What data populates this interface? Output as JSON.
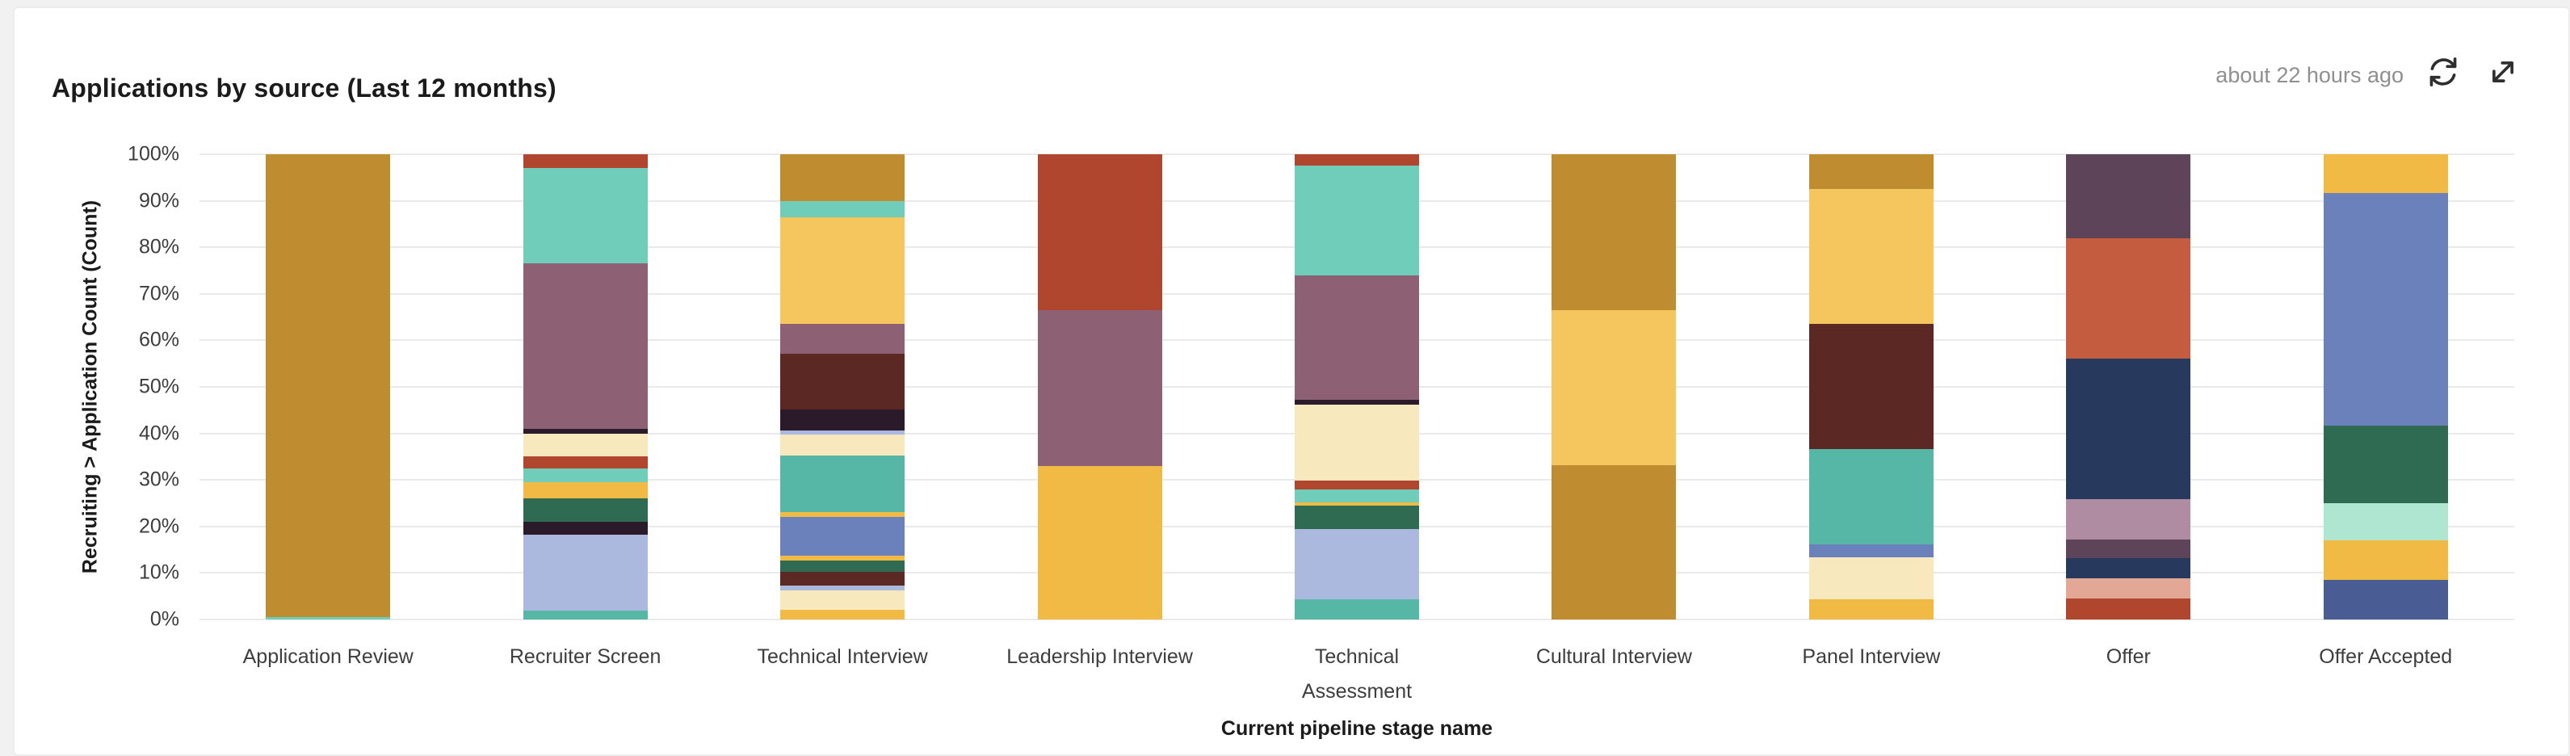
{
  "header": {
    "last_updated": "about 22 hours ago",
    "refresh_icon": "refresh-icon",
    "expand_icon": "expand-icon"
  },
  "colors": {
    "page_bg": "#F1F1F1",
    "card_bg": "#FFFFFF",
    "card_border": "#ECECEC",
    "gridline": "#EAEAEA",
    "axis_text": "#3D3D3D",
    "title_text": "#1B1B1B",
    "muted_text": "#8F8F8F",
    "icon": "#2E2E2E"
  },
  "chart_data": {
    "type": "bar",
    "variant": "stacked-100-percent",
    "title": "Applications by source (Last 12 months)",
    "xlabel": "Current pipeline stage name",
    "ylabel": "Recruiting > Application Count (Count)",
    "ylim": [
      0,
      100
    ],
    "y_unit": "%",
    "grid": "horizontal",
    "legend": "none",
    "y_ticks": [
      "0%",
      "10%",
      "20%",
      "30%",
      "40%",
      "50%",
      "60%",
      "70%",
      "80%",
      "90%",
      "100%"
    ],
    "categories": [
      "Application Review",
      "Recruiter Screen",
      "Technical Interview",
      "Leadership Interview",
      "Technical Assessment",
      "Cultural Interview",
      "Panel Interview",
      "Offer",
      "Offer Accepted"
    ],
    "segment_order": "top-to-bottom",
    "bars": [
      {
        "category": "Application Review",
        "segments": [
          {
            "color": "#BF8D2F",
            "value": 99.5
          },
          {
            "color": "#6FCDBA",
            "value": 0.5
          }
        ]
      },
      {
        "category": "Recruiter Screen",
        "segments": [
          {
            "color": "#B1462E",
            "value": 3
          },
          {
            "color": "#6FCDBA",
            "value": 20.5
          },
          {
            "color": "#8D6073",
            "value": 35.5
          },
          {
            "color": "#2B1B2A",
            "value": 1
          },
          {
            "color": "#F7E9BD",
            "value": 5
          },
          {
            "color": "#B1462E",
            "value": 2.5
          },
          {
            "color": "#6FCDBA",
            "value": 3
          },
          {
            "color": "#F0BA45",
            "value": 3.5
          },
          {
            "color": "#2E6B52",
            "value": 5
          },
          {
            "color": "#2B1B2A",
            "value": 2.7
          },
          {
            "color": "#ACB9DE",
            "value": 16.4
          },
          {
            "color": "#57B7A6",
            "value": 1.9
          }
        ]
      },
      {
        "category": "Technical Interview",
        "segments": [
          {
            "color": "#BF8D2F",
            "value": 10
          },
          {
            "color": "#6FCDBA",
            "value": 3.5
          },
          {
            "color": "#F5C55E",
            "value": 23
          },
          {
            "color": "#8D6073",
            "value": 6.3
          },
          {
            "color": "#5C2823",
            "value": 12
          },
          {
            "color": "#2B1B2A",
            "value": 4.5
          },
          {
            "color": "#ACB9DE",
            "value": 1
          },
          {
            "color": "#F7E9BD",
            "value": 4.5
          },
          {
            "color": "#57B7A6",
            "value": 12.2
          },
          {
            "color": "#F0BA45",
            "value": 1
          },
          {
            "color": "#6A81BB",
            "value": 8.3
          },
          {
            "color": "#F0BA45",
            "value": 1
          },
          {
            "color": "#2E6B52",
            "value": 2.4
          },
          {
            "color": "#5C2823",
            "value": 3
          },
          {
            "color": "#ACB9DE",
            "value": 1
          },
          {
            "color": "#F7E9BD",
            "value": 4.3
          },
          {
            "color": "#F0BA45",
            "value": 2
          }
        ]
      },
      {
        "category": "Leadership Interview",
        "segments": [
          {
            "color": "#B1462E",
            "value": 33.5
          },
          {
            "color": "#8D6073",
            "value": 33.5
          },
          {
            "color": "#F0BA45",
            "value": 33
          }
        ]
      },
      {
        "category": "Technical Assessment",
        "segments": [
          {
            "color": "#B1462E",
            "value": 2.5
          },
          {
            "color": "#6FCDBA",
            "value": 23.5
          },
          {
            "color": "#8D6073",
            "value": 26.8
          },
          {
            "color": "#2B1B2A",
            "value": 1
          },
          {
            "color": "#F7E9BD",
            "value": 16.3
          },
          {
            "color": "#B1462E",
            "value": 2
          },
          {
            "color": "#6FCDBA",
            "value": 2.8
          },
          {
            "color": "#F0BA45",
            "value": 0.6
          },
          {
            "color": "#2E6B52",
            "value": 5
          },
          {
            "color": "#ACB9DE",
            "value": 15.2
          },
          {
            "color": "#57B7A6",
            "value": 4.3
          }
        ]
      },
      {
        "category": "Cultural Interview",
        "segments": [
          {
            "color": "#BF8D2F",
            "value": 33.5
          },
          {
            "color": "#F5C55E",
            "value": 33.4
          },
          {
            "color": "#BF8D2F",
            "value": 33.1
          }
        ]
      },
      {
        "category": "Panel Interview",
        "segments": [
          {
            "color": "#BF8D2F",
            "value": 7.5
          },
          {
            "color": "#F5C55E",
            "value": 28.9
          },
          {
            "color": "#5C2823",
            "value": 27
          },
          {
            "color": "#57B7A6",
            "value": 20.5
          },
          {
            "color": "#6A81BB",
            "value": 2.7
          },
          {
            "color": "#F7E9BD",
            "value": 9
          },
          {
            "color": "#F0BA45",
            "value": 4.4
          }
        ]
      },
      {
        "category": "Offer",
        "segments": [
          {
            "color": "#5E4458",
            "value": 18
          },
          {
            "color": "#C45C3F",
            "value": 26
          },
          {
            "color": "#27395C",
            "value": 30.1
          },
          {
            "color": "#B08CA2",
            "value": 8.7
          },
          {
            "color": "#5E4458",
            "value": 4
          },
          {
            "color": "#27395C",
            "value": 4.4
          },
          {
            "color": "#E2A795",
            "value": 4.3
          },
          {
            "color": "#B1462E",
            "value": 4.5
          }
        ]
      },
      {
        "category": "Offer Accepted",
        "segments": [
          {
            "color": "#F0BA45",
            "value": 8.4
          },
          {
            "color": "#6A81BB",
            "value": 49.9
          },
          {
            "color": "#2E6B52",
            "value": 16.7
          },
          {
            "color": "#AEE6D1",
            "value": 8
          },
          {
            "color": "#F0BA45",
            "value": 8.5
          },
          {
            "color": "#4A5C94",
            "value": 8.5
          }
        ]
      }
    ]
  }
}
